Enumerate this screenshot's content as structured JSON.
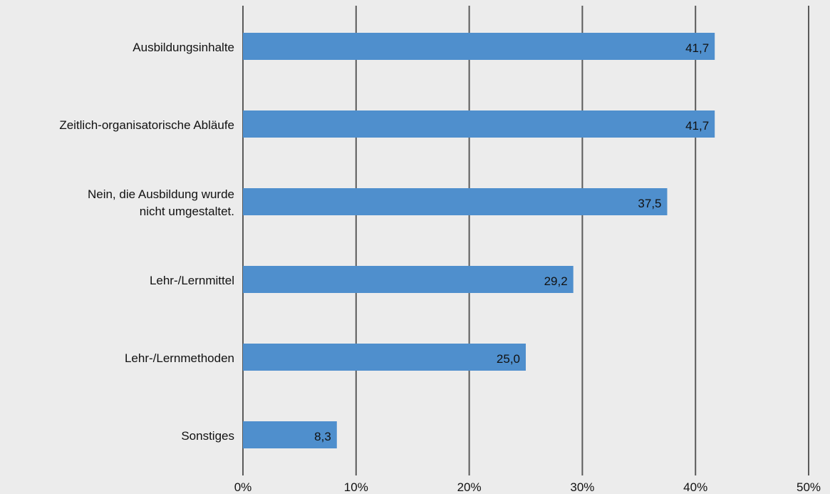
{
  "chart_data": {
    "type": "bar",
    "orientation": "horizontal",
    "categories": [
      [
        "Ausbildungsinhalte"
      ],
      [
        "Zeitlich-organisatorische Abläufe"
      ],
      [
        "Nein, die Ausbildung wurde",
        "nicht umgestaltet."
      ],
      [
        "Lehr-/Lernmittel"
      ],
      [
        "Lehr-/Lernmethoden"
      ],
      [
        "Sonstiges"
      ]
    ],
    "values": [
      41.7,
      41.7,
      37.5,
      29.2,
      25.0,
      8.3
    ],
    "value_labels": [
      "41,7",
      "41,7",
      "37,5",
      "29,2",
      "25,0",
      "8,3"
    ],
    "x_ticks": [
      0,
      10,
      20,
      30,
      40,
      50
    ],
    "x_tick_labels": [
      "0%",
      "10%",
      "20%",
      "30%",
      "40%",
      "50%"
    ],
    "xlim": [
      0,
      50
    ],
    "grid": "vertical",
    "legend": "none",
    "colors": {
      "bar": "#4f8fcd",
      "grid": "#5a5a5a",
      "background": "#ececec",
      "text": "#111111"
    }
  }
}
